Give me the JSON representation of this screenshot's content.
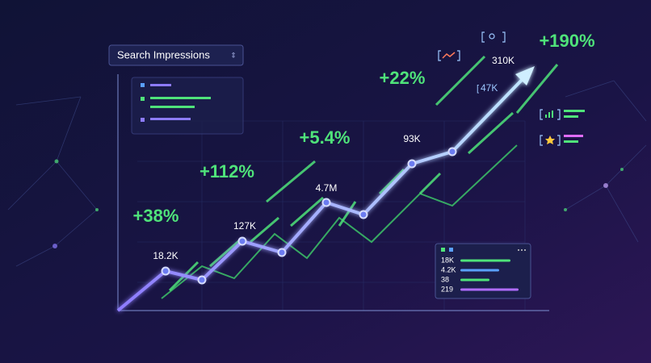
{
  "dropdown": {
    "label": "Search Impressions"
  },
  "growth_labels": [
    "+38%",
    "+112%",
    "+5.4%",
    "+22%",
    "+190%"
  ],
  "point_labels": [
    "18.2K",
    "127K",
    "4.7M",
    "93K",
    "310K",
    "47K"
  ],
  "panel": {
    "rows": [
      "18K",
      "4.2K",
      "38",
      "219"
    ]
  }
}
